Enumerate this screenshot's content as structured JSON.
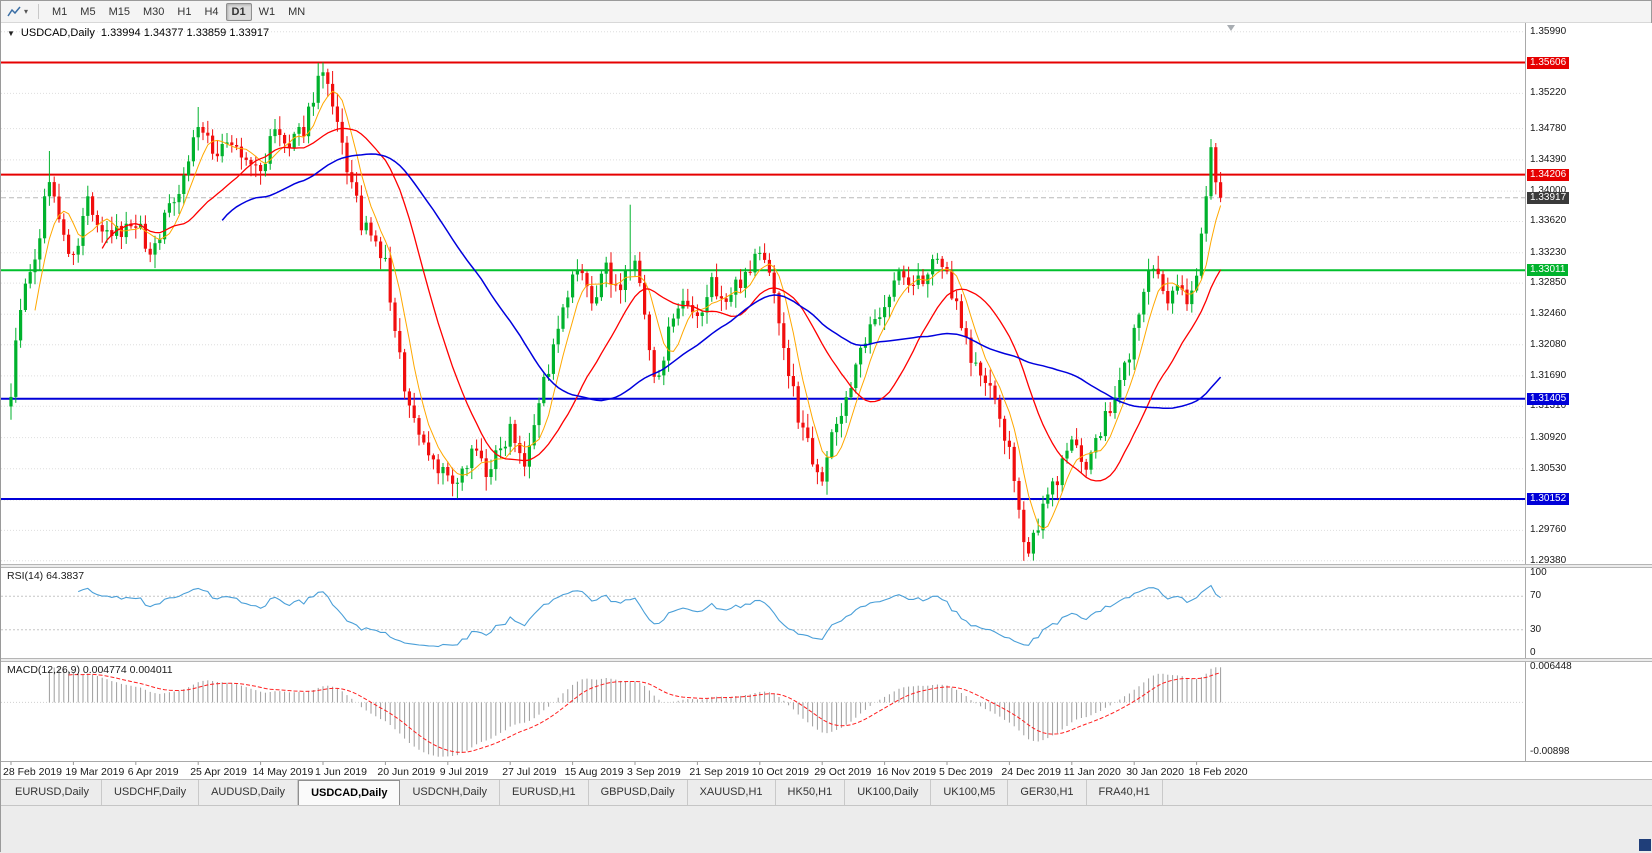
{
  "toolbar": {
    "timeframes": [
      "M1",
      "M5",
      "M15",
      "M30",
      "H1",
      "H4",
      "D1",
      "W1",
      "MN"
    ],
    "active_timeframe": "D1"
  },
  "chart": {
    "symbol_label": "USDCAD,Daily",
    "ohlc_text": "1.33994 1.34377 1.33859 1.33917",
    "bid_line": 1.33917,
    "price_axis": {
      "range": {
        "max": 1.361,
        "min": 1.2934
      },
      "ticks": [
        "1.35990",
        "1.35220",
        "1.34780",
        "1.34390",
        "1.34000",
        "1.33620",
        "1.33230",
        "1.32850",
        "1.32460",
        "1.32080",
        "1.31690",
        "1.31310",
        "1.30920",
        "1.30530",
        "1.29760",
        "1.29380"
      ],
      "grid_extra": [
        1.356,
        1.3014
      ],
      "tags": [
        {
          "value": "1.35606",
          "price": 1.35606,
          "color": "#e60000"
        },
        {
          "value": "1.34206",
          "price": 1.34206,
          "color": "#e60000"
        },
        {
          "value": "1.33917",
          "price": 1.33917,
          "color": "#3a3a3a"
        },
        {
          "value": "1.33011",
          "price": 1.33011,
          "color": "#00b32c"
        },
        {
          "value": "1.31405",
          "price": 1.31405,
          "color": "#0000d8"
        },
        {
          "value": "1.30152",
          "price": 1.30152,
          "color": "#0000d8"
        }
      ]
    },
    "levels": [
      {
        "price": 1.35606,
        "color": "#e60000",
        "width": 2
      },
      {
        "price": 1.34206,
        "color": "#e60000",
        "width": 2
      },
      {
        "price": 1.33011,
        "color": "#00c02c",
        "width": 2
      },
      {
        "price": 1.31405,
        "color": "#0000d8",
        "width": 2
      },
      {
        "price": 1.30152,
        "color": "#0000d8",
        "width": 2
      }
    ]
  },
  "chart_data": {
    "type": "candlestick",
    "symbol": "USDCAD",
    "timeframe": "Daily",
    "ohlc_display": {
      "open": 1.33994,
      "high": 1.34377,
      "low": 1.33859,
      "close": 1.33917
    },
    "support_resistance_levels": [
      1.35606,
      1.34206,
      1.33011,
      1.31405,
      1.30152
    ],
    "candle_count": 253,
    "candles_per_label": 13,
    "seed": 9,
    "noise": 0.0024,
    "wick": 0.0015,
    "last_close": 1.33917,
    "close_waypoints": [
      [
        0,
        1.315
      ],
      [
        2,
        1.326
      ],
      [
        5,
        1.331
      ],
      [
        8,
        1.342
      ],
      [
        10,
        1.336
      ],
      [
        13,
        1.331
      ],
      [
        16,
        1.339
      ],
      [
        19,
        1.334
      ],
      [
        23,
        1.335
      ],
      [
        26,
        1.3365
      ],
      [
        29,
        1.332
      ],
      [
        33,
        1.338
      ],
      [
        36,
        1.342
      ],
      [
        39,
        1.3485
      ],
      [
        42,
        1.3445
      ],
      [
        45,
        1.3465
      ],
      [
        48,
        1.344
      ],
      [
        52,
        1.3425
      ],
      [
        55,
        1.3475
      ],
      [
        58,
        1.345
      ],
      [
        61,
        1.348
      ],
      [
        64,
        1.354
      ],
      [
        65,
        1.3545
      ],
      [
        67,
        1.35
      ],
      [
        70,
        1.343
      ],
      [
        73,
        1.336
      ],
      [
        76,
        1.333
      ],
      [
        78,
        1.331
      ],
      [
        80,
        1.322
      ],
      [
        83,
        1.313
      ],
      [
        86,
        1.3085
      ],
      [
        89,
        1.3055
      ],
      [
        93,
        1.3025
      ],
      [
        96,
        1.3085
      ],
      [
        99,
        1.305
      ],
      [
        102,
        1.3075
      ],
      [
        104,
        1.311
      ],
      [
        107,
        1.3065
      ],
      [
        110,
        1.314
      ],
      [
        113,
        1.32
      ],
      [
        116,
        1.327
      ],
      [
        118,
        1.33
      ],
      [
        121,
        1.326
      ],
      [
        124,
        1.33
      ],
      [
        127,
        1.328
      ],
      [
        130,
        1.3315
      ],
      [
        132,
        1.324
      ],
      [
        134,
        1.316
      ],
      [
        137,
        1.322
      ],
      [
        140,
        1.3255
      ],
      [
        143,
        1.3235
      ],
      [
        146,
        1.3285
      ],
      [
        149,
        1.326
      ],
      [
        152,
        1.329
      ],
      [
        156,
        1.3325
      ],
      [
        159,
        1.328
      ],
      [
        161,
        1.32
      ],
      [
        164,
        1.312
      ],
      [
        167,
        1.307
      ],
      [
        169,
        1.3045
      ],
      [
        172,
        1.311
      ],
      [
        175,
        1.316
      ],
      [
        178,
        1.321
      ],
      [
        182,
        1.3265
      ],
      [
        185,
        1.3295
      ],
      [
        188,
        1.328
      ],
      [
        191,
        1.33
      ],
      [
        194,
        1.331
      ],
      [
        197,
        1.326
      ],
      [
        200,
        1.319
      ],
      [
        203,
        1.316
      ],
      [
        206,
        1.312
      ],
      [
        208,
        1.307
      ],
      [
        210,
        1.299
      ],
      [
        212,
        1.2955
      ],
      [
        214,
        1.2985
      ],
      [
        217,
        1.303
      ],
      [
        220,
        1.307
      ],
      [
        222,
        1.309
      ],
      [
        224,
        1.3055
      ],
      [
        227,
        1.31
      ],
      [
        230,
        1.314
      ],
      [
        233,
        1.32
      ],
      [
        235,
        1.3245
      ],
      [
        237,
        1.3305
      ],
      [
        239,
        1.329
      ],
      [
        241,
        1.325
      ],
      [
        243,
        1.329
      ],
      [
        245,
        1.327
      ],
      [
        247,
        1.329
      ],
      [
        248,
        1.334
      ],
      [
        249,
        1.3405
      ],
      [
        250,
        1.345
      ],
      [
        251,
        1.3415
      ],
      [
        252,
        1.33917
      ]
    ],
    "wick_pins": [
      [
        8,
        "h",
        1.345
      ],
      [
        39,
        "h",
        1.3505
      ],
      [
        65,
        "h",
        1.35606
      ],
      [
        93,
        "l",
        1.3016
      ],
      [
        129,
        "h",
        1.3383
      ],
      [
        211,
        "l",
        1.2938
      ],
      [
        250,
        "h",
        1.3465
      ]
    ],
    "moving_averages": [
      {
        "period": 6,
        "color": "#ffa800",
        "width": 1
      },
      {
        "period": 20,
        "color": "#ff0000",
        "width": 1.3
      },
      {
        "period": 45,
        "color": "#0000dd",
        "width": 1.5
      }
    ],
    "x_labels": [
      "28 Feb 2019",
      "19 Mar 2019",
      "6 Apr 2019",
      "25 Apr 2019",
      "14 May 2019",
      "1 Jun 2019",
      "20 Jun 2019",
      "9 Jul 2019",
      "27 Jul 2019",
      "15 Aug 2019",
      "3 Sep 2019",
      "21 Sep 2019",
      "10 Oct 2019",
      "29 Oct 2019",
      "16 Nov 2019",
      "5 Dec 2019",
      "24 Dec 2019",
      "11 Jan 2020",
      "30 Jan 2020",
      "18 Feb 2020"
    ]
  },
  "rsi": {
    "label": "RSI(14) 64.3837",
    "period": 14,
    "current_value": 64.3837,
    "color": "#4a9fd8",
    "guides": [
      70,
      30
    ],
    "axis": [
      {
        "label": "100",
        "value": 100
      },
      {
        "label": "70",
        "value": 70
      },
      {
        "label": "30",
        "value": 30
      },
      {
        "label": "0",
        "value": 0
      }
    ]
  },
  "macd": {
    "label": "MACD(12,26,9) 0.004774 0.004011",
    "fast": 12,
    "slow": 26,
    "signal": 9,
    "macd_value": 0.004774,
    "signal_value": 0.004011,
    "axis": [
      {
        "label": "0.006448",
        "value": 0.006448
      },
      {
        "label": "-0.00898",
        "value": -0.00898
      }
    ]
  },
  "tabs": {
    "items": [
      "EURUSD,Daily",
      "USDCHF,Daily",
      "AUDUSD,Daily",
      "USDCAD,Daily",
      "USDCNH,Daily",
      "EURUSD,H1",
      "GBPUSD,Daily",
      "XAUUSD,H1",
      "HK50,H1",
      "UK100,Daily",
      "UK100,M5",
      "GER30,H1",
      "FRA40,H1"
    ],
    "active": "USDCAD,Daily"
  },
  "colors": {
    "bull": "#00b22d",
    "bear": "#f10e0e",
    "grid": "#dedede",
    "rsi_line": "#4a9fd8",
    "macd_histogram": "#9d9d9d",
    "macd_signal": "#ff2020"
  }
}
